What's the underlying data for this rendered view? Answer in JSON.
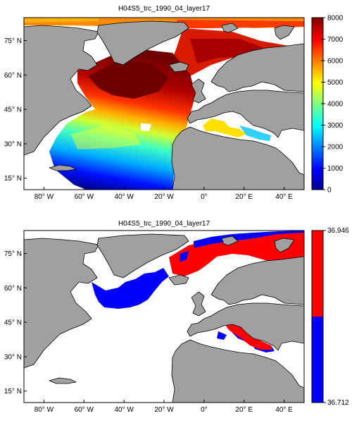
{
  "panels": [
    {
      "title": "H04S5_trc_1990_04_layer17",
      "y_ticks": [
        {
          "deg": 75,
          "label": "75° N"
        },
        {
          "deg": 60,
          "label": "60° N"
        },
        {
          "deg": 45,
          "label": "45° N"
        },
        {
          "deg": 30,
          "label": "30° N"
        },
        {
          "deg": 15,
          "label": "15° N"
        }
      ],
      "x_ticks": [
        {
          "deg": -80,
          "label": "80° W"
        },
        {
          "deg": -60,
          "label": "60° W"
        },
        {
          "deg": -40,
          "label": "40° W"
        },
        {
          "deg": -20,
          "label": "20° W"
        },
        {
          "deg": 0,
          "label": "0°"
        },
        {
          "deg": 20,
          "label": "20° E"
        },
        {
          "deg": 40,
          "label": "40° E"
        }
      ],
      "colorbar": {
        "type": "continuous",
        "min": 0,
        "max": 8000,
        "ticks": [
          "0",
          "1000",
          "2000",
          "3000",
          "4000",
          "5000",
          "6000",
          "7000",
          "8000"
        ]
      }
    },
    {
      "title": "H04S5_trc_1990_04_layer17",
      "y_ticks": [
        {
          "deg": 75,
          "label": "75° N"
        },
        {
          "deg": 60,
          "label": "60° N"
        },
        {
          "deg": 45,
          "label": "45° N"
        },
        {
          "deg": 30,
          "label": "30° N"
        },
        {
          "deg": 15,
          "label": "15° N"
        }
      ],
      "x_ticks": [
        {
          "deg": -80,
          "label": "80° W"
        },
        {
          "deg": -60,
          "label": "60° W"
        },
        {
          "deg": -40,
          "label": "40° W"
        },
        {
          "deg": -20,
          "label": "20° W"
        },
        {
          "deg": 0,
          "label": "0°"
        },
        {
          "deg": 20,
          "label": "20° E"
        },
        {
          "deg": 40,
          "label": "40° E"
        }
      ],
      "colorbar": {
        "type": "two-class",
        "top_label": "36.946",
        "bottom_label": "36.712",
        "top_color": "#ff0000",
        "bottom_color": "#0000ff"
      }
    }
  ],
  "colors": {
    "land": "#a0a0a0",
    "no_data": "#ffffff",
    "coastline": "#000000"
  },
  "extent": {
    "lon": [
      -90,
      50
    ],
    "lat": [
      10,
      85
    ]
  }
}
